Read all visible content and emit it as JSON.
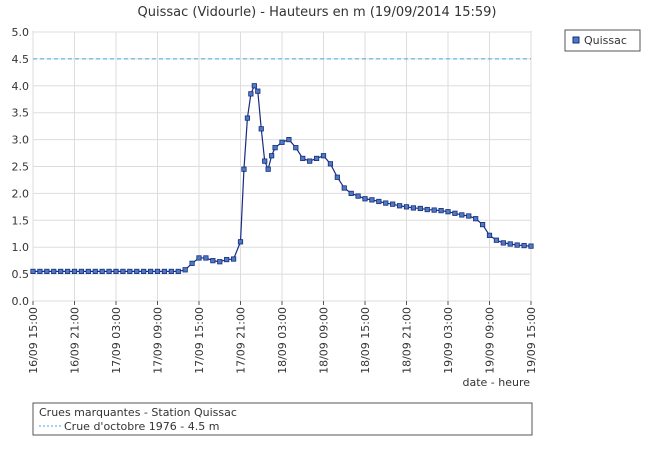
{
  "chart_data": {
    "type": "line",
    "title": "Quissac (Vidourle) - Hauteurs en m (19/09/2014 15:59)",
    "x_label": "date - heure",
    "xlim": [
      "16/09 15:00",
      "19/09 15:00"
    ],
    "xticks": [
      "16/09 15:00",
      "16/09 21:00",
      "17/09 03:00",
      "17/09 09:00",
      "17/09 15:00",
      "17/09 21:00",
      "18/09 03:00",
      "18/09 09:00",
      "18/09 15:00",
      "18/09 21:00",
      "19/09 03:00",
      "19/09 09:00",
      "19/09 15:00"
    ],
    "ylim": [
      0,
      5
    ],
    "yticks": [
      {
        "value": 0,
        "label": "0.0"
      },
      {
        "value": 0.5,
        "label": "0.5"
      },
      {
        "value": 1,
        "label": "1.0"
      },
      {
        "value": 1.5,
        "label": "1.5"
      },
      {
        "value": 2,
        "label": "2.0"
      },
      {
        "value": 2.5,
        "label": "2.5"
      },
      {
        "value": 3,
        "label": "3.0"
      },
      {
        "value": 3.5,
        "label": "3.5"
      },
      {
        "value": 4,
        "label": "4.0"
      },
      {
        "value": 4.5,
        "label": "4.5"
      },
      {
        "value": 5,
        "label": "5.0"
      }
    ],
    "grid": true,
    "legend_position": "top-right",
    "x": [
      "16/09 15:00",
      "16/09 16:00",
      "16/09 17:00",
      "16/09 18:00",
      "16/09 19:00",
      "16/09 20:00",
      "16/09 21:00",
      "16/09 22:00",
      "16/09 23:00",
      "17/09 00:00",
      "17/09 01:00",
      "17/09 02:00",
      "17/09 03:00",
      "17/09 04:00",
      "17/09 05:00",
      "17/09 06:00",
      "17/09 07:00",
      "17/09 08:00",
      "17/09 09:00",
      "17/09 10:00",
      "17/09 11:00",
      "17/09 12:00",
      "17/09 13:00",
      "17/09 14:00",
      "17/09 15:00",
      "17/09 16:00",
      "17/09 17:00",
      "17/09 18:00",
      "17/09 19:00",
      "17/09 20:00",
      "17/09 21:00",
      "17/09 21:30",
      "17/09 22:00",
      "17/09 22:30",
      "17/09 23:00",
      "17/09 23:30",
      "18/09 00:00",
      "18/09 00:30",
      "18/09 01:00",
      "18/09 01:30",
      "18/09 02:00",
      "18/09 03:00",
      "18/09 04:00",
      "18/09 05:00",
      "18/09 06:00",
      "18/09 07:00",
      "18/09 08:00",
      "18/09 09:00",
      "18/09 10:00",
      "18/09 11:00",
      "18/09 12:00",
      "18/09 13:00",
      "18/09 14:00",
      "18/09 15:00",
      "18/09 16:00",
      "18/09 17:00",
      "18/09 18:00",
      "18/09 19:00",
      "18/09 20:00",
      "18/09 21:00",
      "18/09 22:00",
      "18/09 23:00",
      "19/09 00:00",
      "19/09 01:00",
      "19/09 02:00",
      "19/09 03:00",
      "19/09 04:00",
      "19/09 05:00",
      "19/09 06:00",
      "19/09 07:00",
      "19/09 08:00",
      "19/09 09:00",
      "19/09 10:00",
      "19/09 11:00",
      "19/09 12:00",
      "19/09 13:00",
      "19/09 14:00",
      "19/09 15:00"
    ],
    "series": [
      {
        "name": "Quissac",
        "color": "#1a2a80",
        "marker_color": "#4a7cc0",
        "values": [
          0.55,
          0.55,
          0.55,
          0.55,
          0.55,
          0.55,
          0.55,
          0.55,
          0.55,
          0.55,
          0.55,
          0.55,
          0.55,
          0.55,
          0.55,
          0.55,
          0.55,
          0.55,
          0.55,
          0.55,
          0.55,
          0.55,
          0.58,
          0.7,
          0.8,
          0.8,
          0.75,
          0.73,
          0.77,
          0.78,
          1.1,
          2.45,
          3.4,
          3.85,
          4.0,
          3.9,
          3.2,
          2.6,
          2.45,
          2.7,
          2.85,
          2.95,
          3.0,
          2.85,
          2.65,
          2.6,
          2.65,
          2.7,
          2.55,
          2.3,
          2.1,
          2.0,
          1.95,
          1.9,
          1.88,
          1.85,
          1.82,
          1.8,
          1.77,
          1.75,
          1.73,
          1.72,
          1.7,
          1.69,
          1.68,
          1.66,
          1.63,
          1.6,
          1.58,
          1.53,
          1.42,
          1.22,
          1.13,
          1.08,
          1.06,
          1.04,
          1.03,
          1.02
        ]
      }
    ],
    "threshold": {
      "title": "Crues marquantes - Station Quissac",
      "label": "Crue d'octobre 1976 - 4.5 m",
      "value": 4.5,
      "color": "#3fa9e0"
    }
  }
}
